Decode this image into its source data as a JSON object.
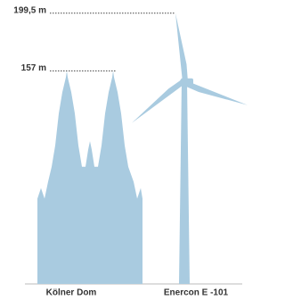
{
  "chart_data": {
    "type": "pictogram",
    "categories": [
      "Kölner Dom",
      "Enercon E -101"
    ],
    "values": [
      157,
      199.5
    ],
    "value_labels": [
      "157 m",
      "199,5 m"
    ],
    "color": "#a9cbe0"
  }
}
